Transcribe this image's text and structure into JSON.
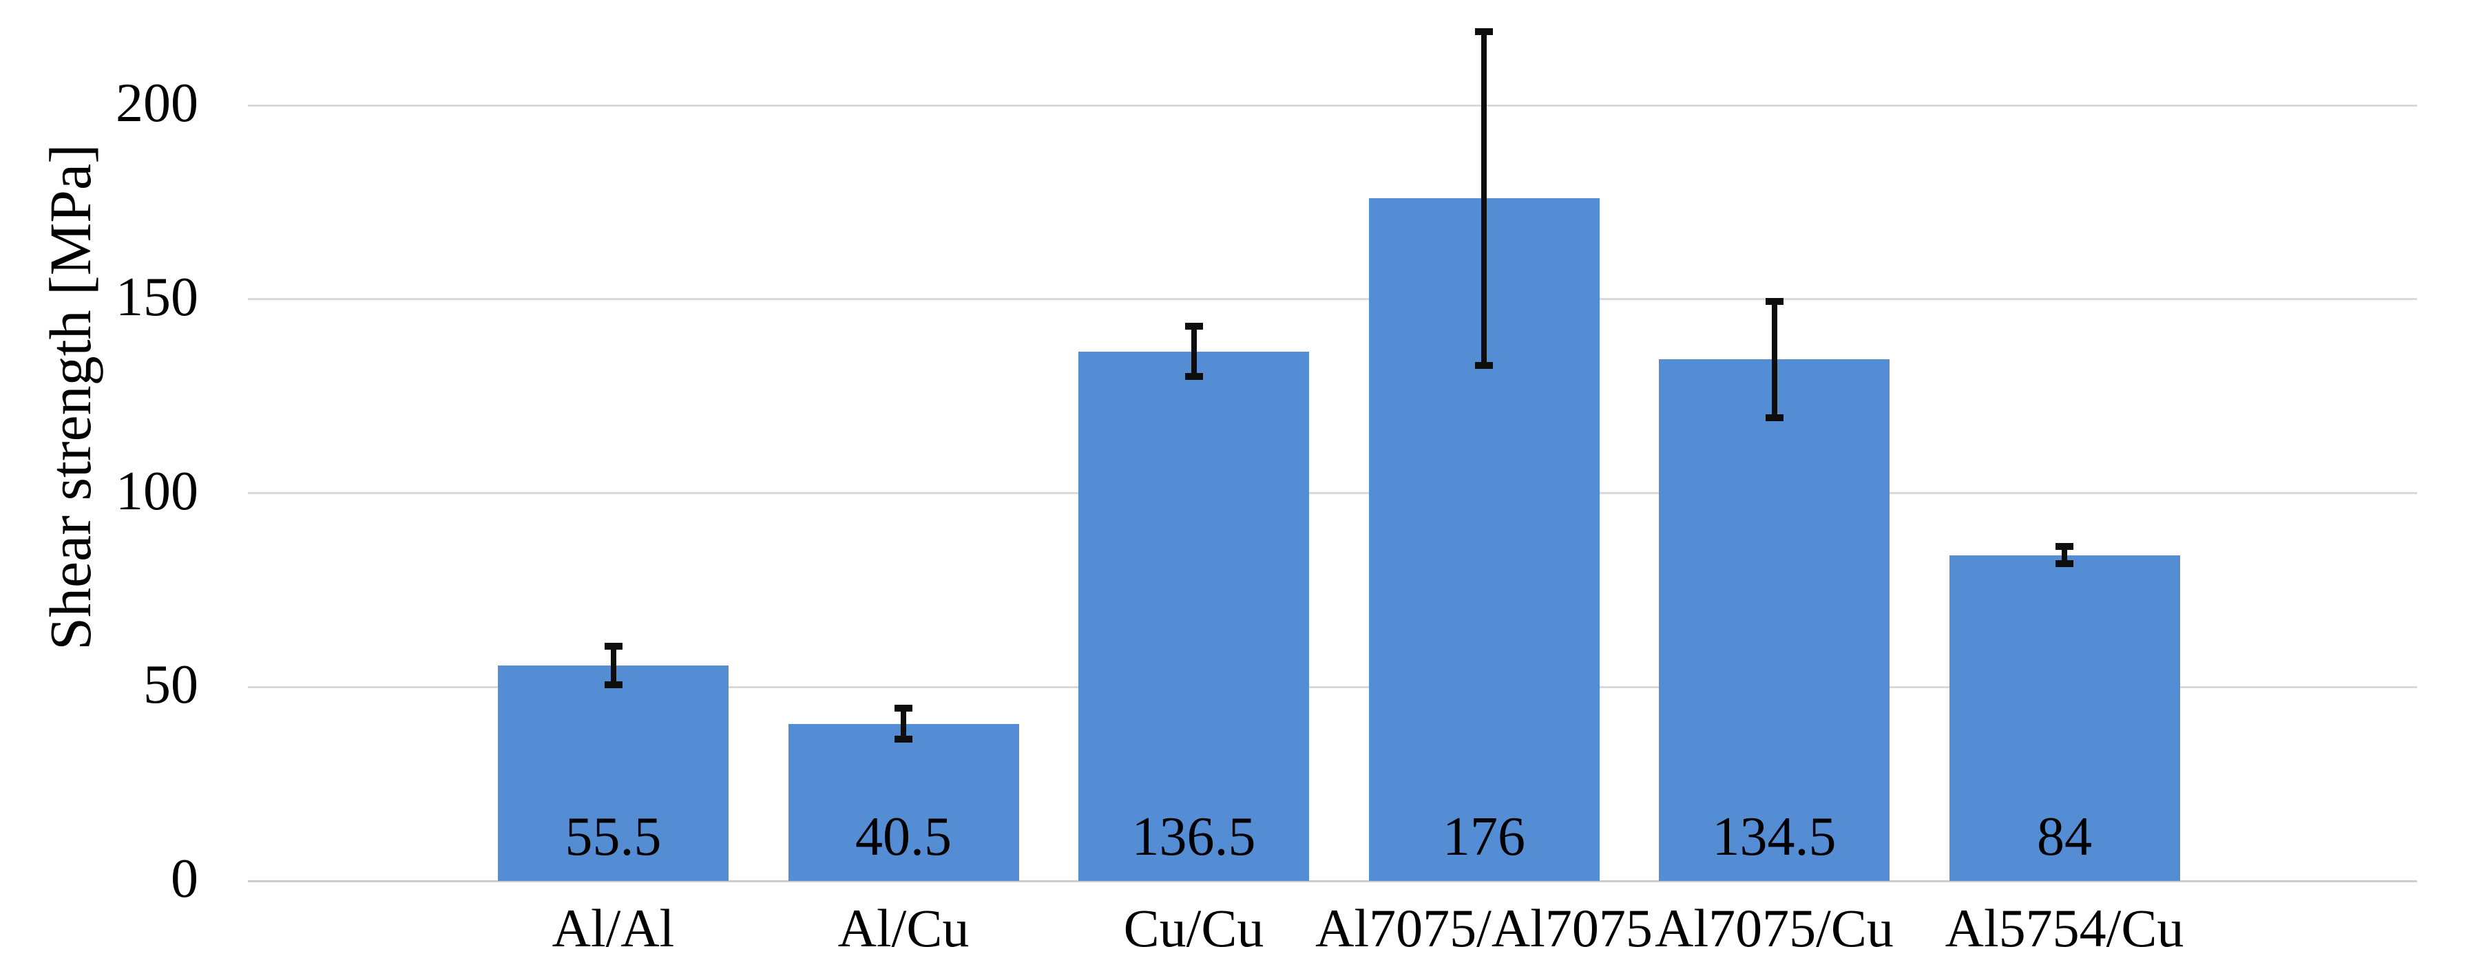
{
  "chart_data": {
    "type": "bar",
    "title": "",
    "xlabel": "",
    "ylabel": "Shear strength [MPa]",
    "categories": [
      "Al/Al",
      "Al/Cu",
      "Cu/Cu",
      "Al7075/Al7075",
      "Al7075/Cu",
      "Al5754/Cu"
    ],
    "values": [
      55.5,
      40.5,
      136.5,
      176,
      134.5,
      84
    ],
    "data_labels": [
      "55.5",
      "40.5",
      "136.5",
      "176",
      "134.5",
      "84"
    ],
    "error_bars_plus_minus": [
      5,
      4,
      6.5,
      43,
      15,
      2.2
    ],
    "yticks": [
      0,
      50,
      100,
      150,
      200
    ],
    "ytick_labels": [
      "0",
      "50",
      "100",
      "150",
      "200"
    ],
    "ylim": [
      0,
      227
    ],
    "grid": "horizontal-major",
    "legend": "none",
    "colors": {
      "bar_fill": "#548dd4",
      "gridline": "#d9d9d9",
      "axis_line": "#cccccc",
      "error_bar": "#0d0d0d",
      "text": "#000000",
      "background": "#ffffff"
    }
  }
}
